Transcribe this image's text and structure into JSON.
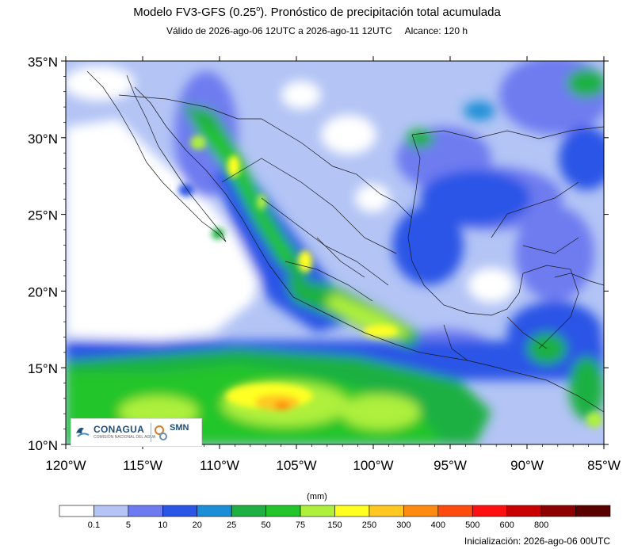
{
  "title_main": "Modelo FV3-GFS (0.25",
  "title_deg": "o",
  "title_rest": "). Pronóstico de precipitación total acumulada",
  "subtitle_valid": "Válido de 2026-ago-06 12UTC a 2026-ago-11 12UTC",
  "subtitle_range": "Alcance: 120 h",
  "lat_labels": [
    "35°N",
    "30°N",
    "25°N",
    "20°N",
    "15°N",
    "10°N"
  ],
  "lon_labels": [
    "120°W",
    "115°W",
    "110°W",
    "105°W",
    "100°W",
    "95°W",
    "90°W",
    "85°W"
  ],
  "legend": {
    "unit": "(mm)",
    "labels": [
      "0.1",
      "5",
      "10",
      "20",
      "25",
      "50",
      "75",
      "150",
      "250",
      "300",
      "400",
      "500",
      "600",
      "800"
    ],
    "colors": [
      "#ffffff",
      "#b3c4f5",
      "#6e7bf0",
      "#2b55e6",
      "#1a8fd6",
      "#1fb043",
      "#22c52a",
      "#aef03c",
      "#ffff20",
      "#ffc820",
      "#ff8a10",
      "#ff4a10",
      "#ff1010",
      "#c80000",
      "#8c0000",
      "#5a0000"
    ]
  },
  "logos": {
    "conagua": "CONAGUA",
    "conagua_sub": "COMISIÓN NACIONAL DEL AGUA",
    "smn": "SMN",
    "smn_sub": "SERVICIO METEOROLÓGICO NACIONAL"
  },
  "init_time": "Inicialización: 2026-ago-06 00UTC"
}
